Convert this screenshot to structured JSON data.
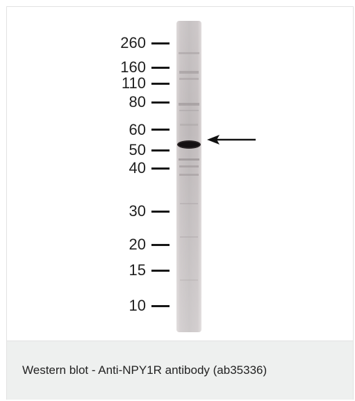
{
  "figure": {
    "markers": [
      "260",
      "160",
      "110",
      "80",
      "60",
      "50",
      "40",
      "30",
      "20",
      "15",
      "10"
    ],
    "arrow": "band-indicator-arrow"
  },
  "caption": "Western blot - Anti-NPY1R antibody (ab35336)"
}
